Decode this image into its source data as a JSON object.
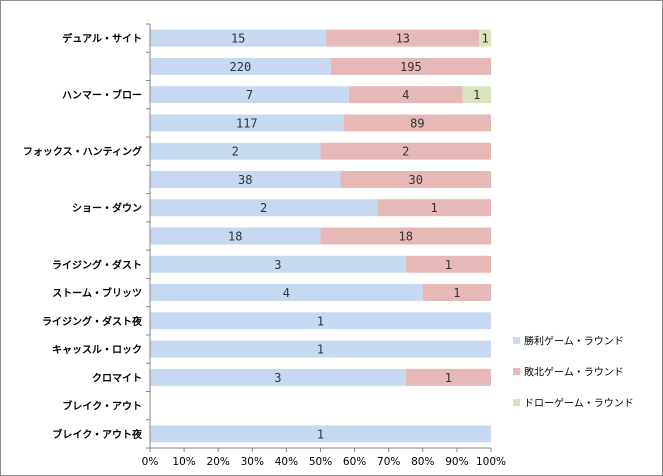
{
  "chart_data": {
    "type": "bar",
    "orientation": "horizontal",
    "stacked": "percent",
    "categories": [
      "デュアル・サイト",
      "",
      "ハンマー・ブロー",
      "",
      "フォックス・ハンティング",
      "",
      "ショー・ダウン",
      "",
      "ライジング・ダスト",
      "ストーム・ブリッツ",
      "ライジング・ダスト夜",
      "キャッスル・ロック",
      "クロマイト",
      "ブレイク・アウト",
      "ブレイク・アウト夜"
    ],
    "series": [
      {
        "name": "勝利ゲーム・ラウンド",
        "color": "#c6d9f1",
        "values": [
          15,
          220,
          7,
          117,
          2,
          38,
          2,
          18,
          3,
          4,
          1,
          1,
          3,
          0,
          1
        ]
      },
      {
        "name": "敗北ゲーム・ラウンド",
        "color": "#e6b9b8",
        "values": [
          13,
          195,
          4,
          89,
          2,
          30,
          1,
          18,
          1,
          1,
          0,
          0,
          1,
          0,
          0
        ]
      },
      {
        "name": "ドローゲーム・ラウンド",
        "color": "#d7e4bd",
        "values": [
          1,
          0,
          1,
          0,
          0,
          0,
          0,
          0,
          0,
          0,
          0,
          0,
          0,
          0,
          0
        ]
      }
    ],
    "x_ticks": [
      "0%",
      "10%",
      "20%",
      "30%",
      "40%",
      "50%",
      "60%",
      "70%",
      "80%",
      "90%",
      "100%"
    ],
    "xlim": [
      0,
      100
    ],
    "grid": false,
    "legend_position": "right"
  }
}
